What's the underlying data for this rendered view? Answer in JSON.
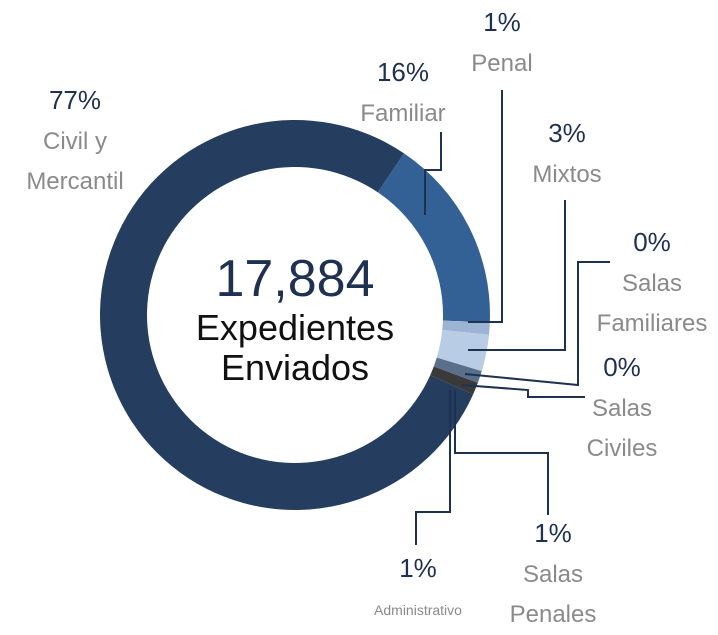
{
  "chart_data": {
    "type": "donut",
    "center_value": "17,884",
    "center_label": "Expedientes Enviados",
    "categories": [
      "Familiar",
      "Penal",
      "Mixtos",
      "Salas Familiares",
      "Salas Civiles",
      "Salas Penales",
      "Administrativo",
      "Civil y Mercantil"
    ],
    "values": [
      16,
      1,
      3,
      0,
      0,
      1,
      1,
      77
    ],
    "value_labels": [
      "16%",
      "1%",
      "3%",
      "0%",
      "0%",
      "1%",
      "1%",
      "77%"
    ],
    "colors": [
      "#336196",
      "#9db3d4",
      "#b8cce6",
      "#c9d8ee",
      "#4a86d0",
      "#5a6f8a",
      "#3a3a3a",
      "#253e5f"
    ]
  }
}
